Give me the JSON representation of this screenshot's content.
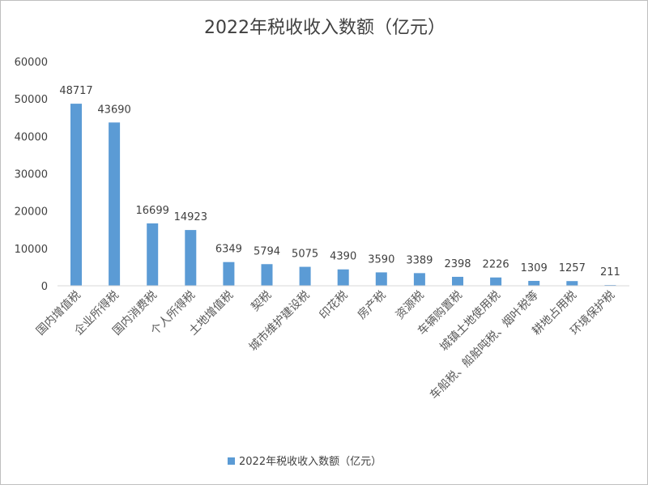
{
  "chart_data": {
    "type": "bar",
    "title": "2022年税收收入数额（亿元）",
    "xlabel": "",
    "ylabel": "",
    "ylim": [
      0,
      60000
    ],
    "yticks": [
      0,
      10000,
      20000,
      30000,
      40000,
      50000,
      60000
    ],
    "grid": false,
    "legend": "bottom",
    "bar_color": "#5B9BD5",
    "categories": [
      "国内增值税",
      "企业所得税",
      "国内消费税",
      "个人所得税",
      "土地增值税",
      "契税",
      "城市维护建设税",
      "印花税",
      "房产税",
      "资源税",
      "车辆购置税",
      "城镇土地使用税",
      "车船税、船舶吨税、烟叶税等",
      "耕地占用税",
      "环境保护税"
    ],
    "series": [
      {
        "name": "2022年税收收入数额（亿元）",
        "values": [
          48717,
          43690,
          16699,
          14923,
          6349,
          5794,
          5075,
          4390,
          3590,
          3389,
          2398,
          2226,
          1309,
          1257,
          211
        ]
      }
    ]
  }
}
